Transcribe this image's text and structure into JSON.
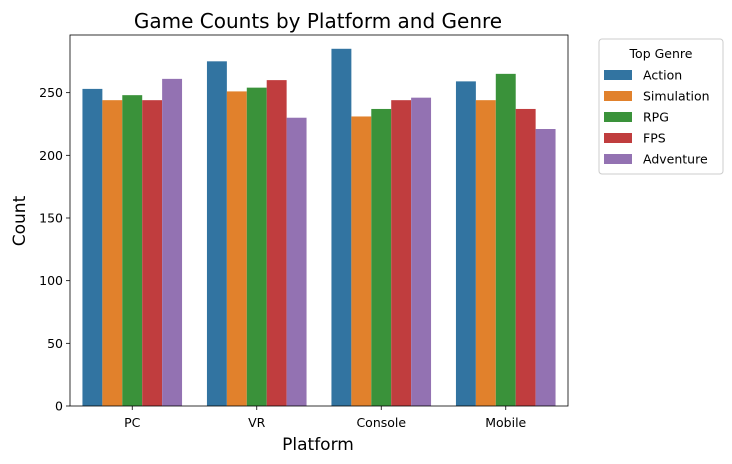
{
  "chart_data": {
    "type": "bar",
    "title": "Game Counts by Platform and Genre",
    "xlabel": "Platform",
    "ylabel": "Count",
    "categories": [
      "PC",
      "VR",
      "Console",
      "Mobile"
    ],
    "ylim": [
      0,
      296
    ],
    "yticks": [
      0,
      50,
      100,
      150,
      200,
      250
    ],
    "grid": false,
    "legend": {
      "title": "Top Genre",
      "placement": "outside-right"
    },
    "series": [
      {
        "name": "Action",
        "color": "#3274a1",
        "values": [
          253,
          275,
          285,
          259
        ]
      },
      {
        "name": "Simulation",
        "color": "#e1812c",
        "values": [
          244,
          251,
          231,
          244
        ]
      },
      {
        "name": "RPG",
        "color": "#3a923a",
        "values": [
          248,
          254,
          237,
          265
        ]
      },
      {
        "name": "FPS",
        "color": "#c03d3e",
        "values": [
          244,
          260,
          244,
          237
        ]
      },
      {
        "name": "Adventure",
        "color": "#9372b2",
        "values": [
          261,
          230,
          246,
          221
        ]
      }
    ]
  }
}
